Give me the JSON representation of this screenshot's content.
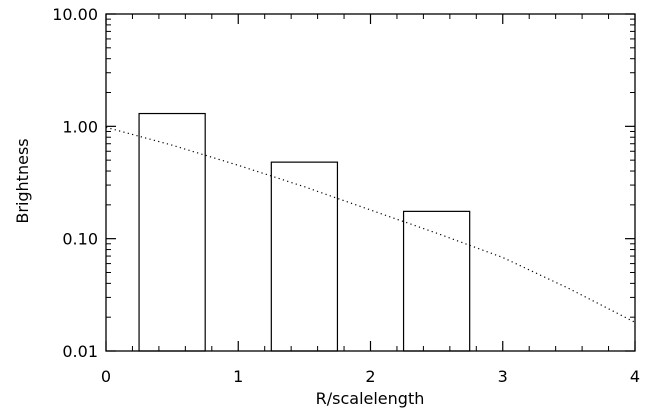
{
  "chart_data": {
    "type": "bar",
    "xlabel": "R/scalelength",
    "ylabel": "Brightness",
    "xlim": [
      0,
      4
    ],
    "ylim": [
      0.01,
      10
    ],
    "yscale": "log",
    "x_ticks": [
      0,
      1,
      2,
      3,
      4
    ],
    "x_tick_labels": [
      "0",
      "1",
      "2",
      "3",
      "4"
    ],
    "y_ticks": [
      0.01,
      0.1,
      1,
      10
    ],
    "y_tick_labels": [
      "0.01",
      "0.10",
      "1.00",
      "10.00"
    ],
    "bars": [
      {
        "x0": 0.25,
        "x1": 0.75,
        "value": 1.3
      },
      {
        "x0": 1.25,
        "x1": 1.75,
        "value": 0.48
      },
      {
        "x0": 2.25,
        "x1": 2.75,
        "value": 0.175
      }
    ],
    "curve": {
      "style": "dotted",
      "x": [
        0,
        0.5,
        1,
        1.5,
        2,
        2.5,
        3,
        3.5,
        4
      ],
      "y": [
        0.98,
        0.68,
        0.45,
        0.29,
        0.18,
        0.112,
        0.068,
        0.036,
        0.018
      ]
    },
    "grid": false,
    "colors": {
      "axis": "#000000",
      "background": "#ffffff"
    }
  }
}
